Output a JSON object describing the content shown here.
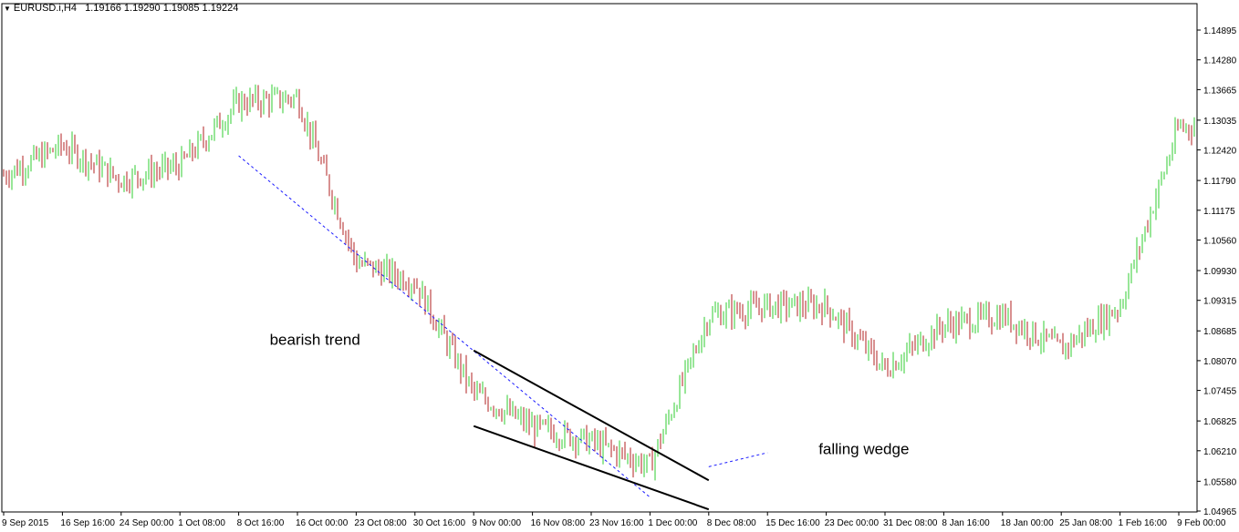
{
  "header": {
    "symbol": "EURUSD.i,H4",
    "open": "1.19166",
    "high": "1.19290",
    "low": "1.19085",
    "close": "1.19224"
  },
  "chart_data": {
    "type": "ohlc",
    "symbol": "EURUSD.i",
    "timeframe": "H4",
    "bar_colors": {
      "up": "#32cd32",
      "down": "#b22222"
    },
    "y_ticks": [
      "1.14895",
      "1.14280",
      "1.13665",
      "1.13035",
      "1.12420",
      "1.11790",
      "1.11175",
      "1.10560",
      "1.09930",
      "1.09315",
      "1.08685",
      "1.08070",
      "1.07455",
      "1.06825",
      "1.06210",
      "1.05580",
      "1.04965"
    ],
    "ylim": [
      1.04965,
      1.152
    ],
    "x_ticks": [
      "9 Sep 2015",
      "16 Sep 16:00",
      "24 Sep 00:00",
      "1 Oct 08:00",
      "8 Oct 16:00",
      "16 Oct 00:00",
      "23 Oct 08:00",
      "30 Oct 16:00",
      "9 Nov 00:00",
      "16 Nov 08:00",
      "23 Nov 16:00",
      "1 Dec 00:00",
      "8 Dec 08:00",
      "15 Dec 16:00",
      "23 Dec 00:00",
      "31 Dec 08:00",
      "8 Jan 16:00",
      "18 Jan 00:00",
      "25 Jan 08:00",
      "1 Feb 16:00",
      "9 Feb 00:00"
    ],
    "price_path": [
      [
        "9 Sep 2015",
        1.119
      ],
      [
        "16 Sep 16:00",
        1.125
      ],
      [
        "24 Sep 00:00",
        1.118
      ],
      [
        "1 Oct 08:00",
        1.121
      ],
      [
        "8 Oct 16:00",
        1.134
      ],
      [
        "16 Oct 00:00",
        1.135
      ],
      [
        "23 Oct 08:00",
        1.101
      ],
      [
        "30 Oct 16:00",
        1.097
      ],
      [
        "9 Nov 00:00",
        1.074
      ],
      [
        "16 Nov 08:00",
        1.067
      ],
      [
        "23 Nov 16:00",
        1.064
      ],
      [
        "1 Dec 00:00",
        1.059
      ],
      [
        "8 Dec 08:00",
        1.09
      ],
      [
        "15 Dec 16:00",
        1.092
      ],
      [
        "23 Dec 00:00",
        1.092
      ],
      [
        "31 Dec 08:00",
        1.079
      ],
      [
        "8 Jan 16:00",
        1.088
      ],
      [
        "18 Jan 00:00",
        1.09
      ],
      [
        "25 Jan 08:00",
        1.083
      ],
      [
        "1 Feb 16:00",
        1.092
      ],
      [
        "9 Feb 00:00",
        1.129
      ]
    ],
    "annotations": [
      {
        "text": "bearish trend"
      },
      {
        "text": "falling wedge"
      }
    ],
    "trend_lines": [
      {
        "name": "bearish-trend-line",
        "style": "dotted",
        "color": "#1a1aff",
        "from": [
          "8 Oct 16:00",
          1.123
        ],
        "to": [
          "1 Dec 00:00",
          1.0525
        ]
      },
      {
        "name": "wedge-upper-line",
        "style": "solid",
        "color": "#000000",
        "from": [
          "9 Nov 00:00",
          1.0828
        ],
        "to": [
          "8 Dec 08:00",
          1.056
        ]
      },
      {
        "name": "wedge-lower-line",
        "style": "solid",
        "color": "#000000",
        "from": [
          "9 Nov 00:00",
          1.0672
        ],
        "to": [
          "8 Dec 08:00",
          1.05
        ]
      },
      {
        "name": "falling-wedge-pointer",
        "style": "dotted",
        "color": "#1a1aff",
        "from": [
          "8 Dec 08:00",
          1.0588
        ],
        "to": [
          "15 Dec 16:00",
          1.0617
        ]
      }
    ]
  }
}
